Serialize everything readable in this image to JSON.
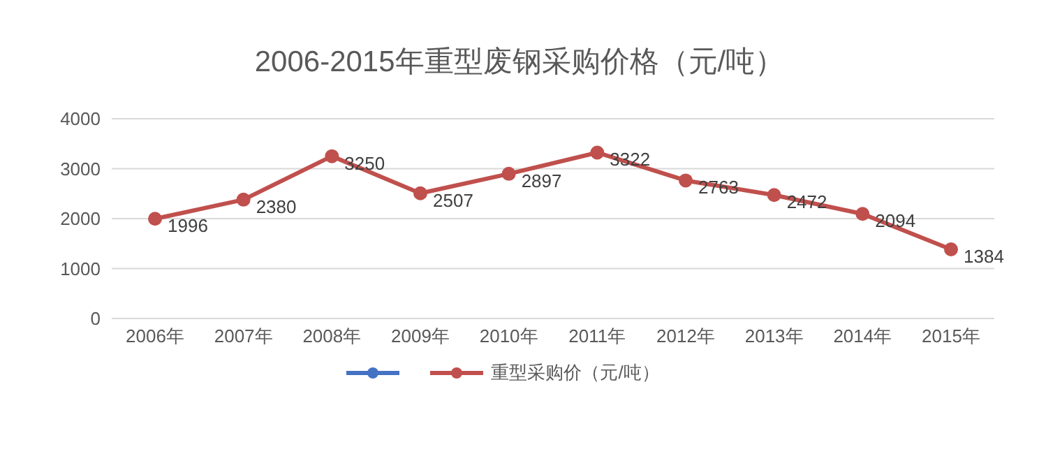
{
  "chart_data": {
    "type": "line",
    "title": "2006-2015年重型废钢采购价格（元/吨）",
    "categories": [
      "2006年",
      "2007年",
      "2008年",
      "2009年",
      "2010年",
      "2011年",
      "2012年",
      "2013年",
      "2014年",
      "2015年"
    ],
    "series": [
      {
        "color": "#4472c4",
        "values": [
          null,
          null,
          null,
          null,
          null,
          null,
          null,
          null,
          null,
          null
        ]
      },
      {
        "name": "重型采购价（元/吨）",
        "color": "#c0504d",
        "values": [
          1996,
          2380,
          3250,
          2507,
          2897,
          3322,
          2763,
          2472,
          2094,
          1384
        ]
      }
    ],
    "ylim": [
      0,
      4000
    ],
    "yticks": [
      0,
      1000,
      2000,
      3000,
      4000
    ],
    "grid": "y",
    "legend": "bottom",
    "marker": "circle",
    "data_labels": true
  }
}
